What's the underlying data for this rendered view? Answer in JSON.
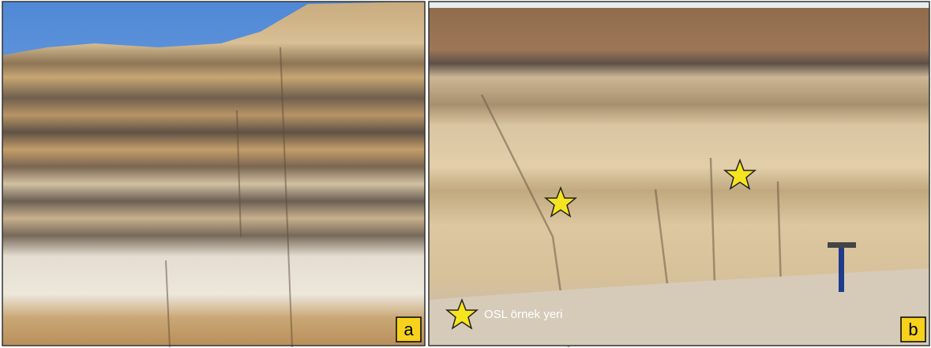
{
  "panels": [
    {
      "label": "a"
    },
    {
      "label": "b"
    }
  ],
  "legend": {
    "text": "OSL örnek yeri"
  }
}
